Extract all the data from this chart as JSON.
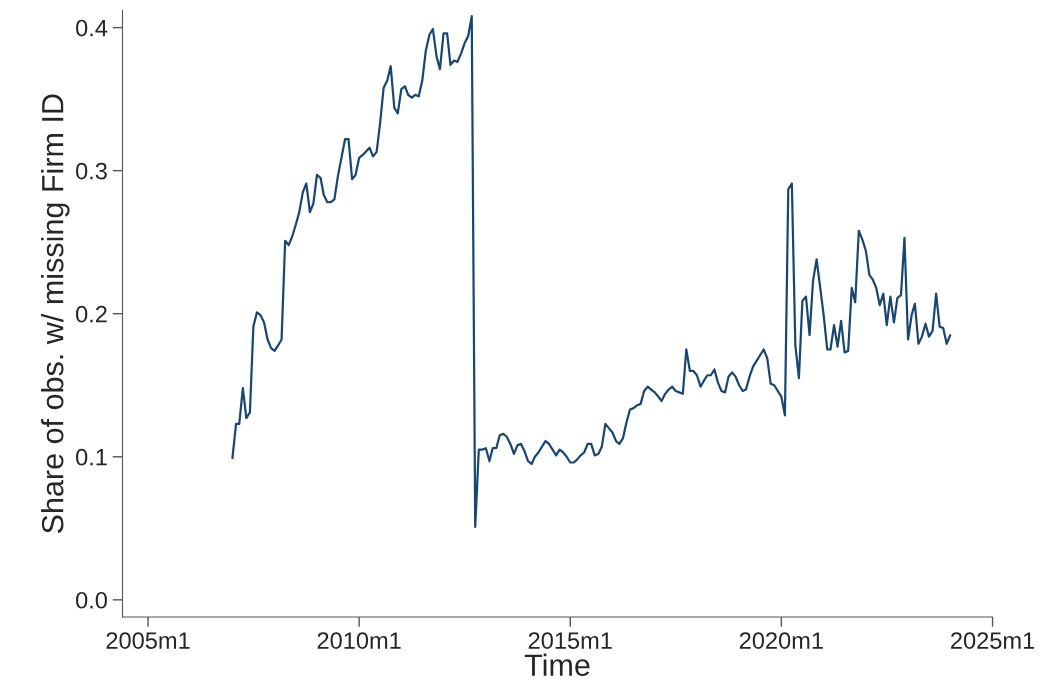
{
  "chart_data": {
    "type": "line",
    "xlabel": "Time",
    "ylabel": "Share of obs. w/ missing Firm ID",
    "xlim": [
      "2004-05-25",
      "2025-01-01"
    ],
    "ylim": [
      -0.012,
      0.412
    ],
    "xticks": [
      {
        "value": "2005-01",
        "label": "2005m1"
      },
      {
        "value": "2010-01",
        "label": "2010m1"
      },
      {
        "value": "2015-01",
        "label": "2015m1"
      },
      {
        "value": "2020-01",
        "label": "2020m1"
      },
      {
        "value": "2025-01",
        "label": "2025m1"
      }
    ],
    "yticks": [
      {
        "value": 0,
        "label": "0.0"
      },
      {
        "value": 0.1,
        "label": "0.1"
      },
      {
        "value": 0.2,
        "label": "0.2"
      },
      {
        "value": 0.3,
        "label": "0.3"
      },
      {
        "value": 0.4,
        "label": "0.4"
      }
    ],
    "grid": false,
    "marker": "none",
    "line_style": "solid",
    "series": [
      {
        "color": "#1a476f",
        "x": [
          "2007-01",
          "2007-02",
          "2007-03",
          "2007-04",
          "2007-05",
          "2007-06",
          "2007-07",
          "2007-08",
          "2007-09",
          "2007-10",
          "2007-11",
          "2007-12",
          "2008-01",
          "2008-02",
          "2008-03",
          "2008-04",
          "2008-05",
          "2008-06",
          "2008-07",
          "2008-08",
          "2008-09",
          "2008-10",
          "2008-11",
          "2008-12",
          "2009-01",
          "2009-02",
          "2009-03",
          "2009-04",
          "2009-05",
          "2009-06",
          "2009-07",
          "2009-08",
          "2009-09",
          "2009-10",
          "2009-11",
          "2009-12",
          "2010-01",
          "2010-02",
          "2010-04",
          "2010-05",
          "2010-06",
          "2010-07",
          "2010-08",
          "2010-09",
          "2010-10",
          "2010-11",
          "2010-12",
          "2011-01",
          "2011-02",
          "2011-03",
          "2011-04",
          "2011-05",
          "2011-06",
          "2011-07",
          "2011-08",
          "2011-09",
          "2011-10",
          "2011-11",
          "2011-12",
          "2012-01",
          "2012-02",
          "2012-03",
          "2012-04",
          "2012-05",
          "2012-06",
          "2012-07",
          "2012-08",
          "2012-09",
          "2012-10",
          "2012-11",
          "2012-12",
          "2013-01",
          "2013-02",
          "2013-03",
          "2013-04",
          "2013-05",
          "2013-06",
          "2013-07",
          "2013-08",
          "2013-09",
          "2013-10",
          "2013-11",
          "2013-12",
          "2014-01",
          "2014-02",
          "2014-03",
          "2014-04",
          "2014-05",
          "2014-06",
          "2014-07",
          "2014-08",
          "2014-09",
          "2014-10",
          "2014-11",
          "2014-12",
          "2015-01",
          "2015-02",
          "2015-03",
          "2015-04",
          "2015-05",
          "2015-06",
          "2015-07",
          "2015-08",
          "2015-09",
          "2015-10",
          "2015-11",
          "2015-12",
          "2016-01",
          "2016-02",
          "2016-03",
          "2016-04",
          "2016-05",
          "2016-06",
          "2016-07",
          "2016-08",
          "2016-09",
          "2016-10",
          "2016-11",
          "2016-12",
          "2017-01",
          "2017-02",
          "2017-03",
          "2017-04",
          "2017-05",
          "2017-06",
          "2017-07",
          "2017-08",
          "2017-09",
          "2017-10",
          "2017-11",
          "2017-12",
          "2018-01",
          "2018-02",
          "2018-03",
          "2018-04",
          "2018-05",
          "2018-06",
          "2018-07",
          "2018-08",
          "2018-09",
          "2018-10",
          "2018-11",
          "2018-12",
          "2019-01",
          "2019-02",
          "2019-03",
          "2019-04",
          "2019-05",
          "2019-06",
          "2019-07",
          "2019-08",
          "2019-09",
          "2019-10",
          "2019-11",
          "2019-12",
          "2020-01",
          "2020-02",
          "2020-03",
          "2020-04",
          "2020-05",
          "2020-06",
          "2020-07",
          "2020-08",
          "2020-09",
          "2020-10",
          "2020-11",
          "2020-12",
          "2021-01",
          "2021-02",
          "2021-03",
          "2021-04",
          "2021-05",
          "2021-06",
          "2021-07",
          "2021-08",
          "2021-09",
          "2021-10",
          "2021-11",
          "2021-12",
          "2022-01",
          "2022-02",
          "2022-03",
          "2022-04",
          "2022-05",
          "2022-06",
          "2022-07",
          "2022-08",
          "2022-09",
          "2022-10",
          "2022-11",
          "2022-12",
          "2023-01",
          "2023-02",
          "2023-03",
          "2023-04",
          "2023-05",
          "2023-06",
          "2023-07",
          "2023-08",
          "2023-09",
          "2023-10",
          "2023-11",
          "2023-12",
          "2024-01"
        ],
        "values": [
          0.099,
          0.123,
          0.123,
          0.148,
          0.127,
          0.131,
          0.191,
          0.201,
          0.199,
          0.194,
          0.182,
          0.176,
          0.174,
          0.178,
          0.182,
          0.251,
          0.248,
          0.254,
          0.262,
          0.271,
          0.285,
          0.291,
          0.271,
          0.277,
          0.297,
          0.295,
          0.283,
          0.278,
          0.278,
          0.28,
          0.296,
          0.309,
          0.322,
          0.322,
          0.294,
          0.297,
          0.309,
          0.311,
          0.316,
          0.31,
          0.313,
          0.333,
          0.358,
          0.363,
          0.373,
          0.344,
          0.34,
          0.357,
          0.359,
          0.353,
          0.351,
          0.353,
          0.352,
          0.363,
          0.384,
          0.395,
          0.399,
          0.38,
          0.371,
          0.396,
          0.396,
          0.374,
          0.377,
          0.376,
          0.382,
          0.389,
          0.394,
          0.408,
          0.051,
          0.105,
          0.105,
          0.106,
          0.097,
          0.106,
          0.106,
          0.115,
          0.116,
          0.114,
          0.109,
          0.102,
          0.108,
          0.109,
          0.104,
          0.097,
          0.095,
          0.1,
          0.103,
          0.107,
          0.111,
          0.109,
          0.105,
          0.101,
          0.105,
          0.103,
          0.1,
          0.096,
          0.096,
          0.098,
          0.101,
          0.103,
          0.109,
          0.109,
          0.101,
          0.102,
          0.107,
          0.123,
          0.12,
          0.117,
          0.111,
          0.109,
          0.113,
          0.124,
          0.133,
          0.134,
          0.136,
          0.137,
          0.146,
          0.149,
          0.147,
          0.145,
          0.142,
          0.139,
          0.144,
          0.147,
          0.149,
          0.146,
          0.145,
          0.144,
          0.175,
          0.16,
          0.16,
          0.157,
          0.149,
          0.153,
          0.157,
          0.157,
          0.161,
          0.152,
          0.146,
          0.145,
          0.156,
          0.159,
          0.156,
          0.15,
          0.146,
          0.147,
          0.156,
          0.163,
          0.167,
          0.171,
          0.175,
          0.169,
          0.151,
          0.15,
          0.146,
          0.142,
          0.129,
          0.287,
          0.291,
          0.178,
          0.155,
          0.209,
          0.212,
          0.185,
          0.223,
          0.238,
          0.219,
          0.199,
          0.175,
          0.175,
          0.192,
          0.177,
          0.195,
          0.173,
          0.174,
          0.218,
          0.208,
          0.258,
          0.252,
          0.244,
          0.227,
          0.224,
          0.218,
          0.206,
          0.214,
          0.192,
          0.212,
          0.194,
          0.211,
          0.213,
          0.253,
          0.182,
          0.199,
          0.207,
          0.179,
          0.184,
          0.193,
          0.184,
          0.188,
          0.214,
          0.191,
          0.19,
          0.179,
          0.185
        ]
      }
    ]
  }
}
